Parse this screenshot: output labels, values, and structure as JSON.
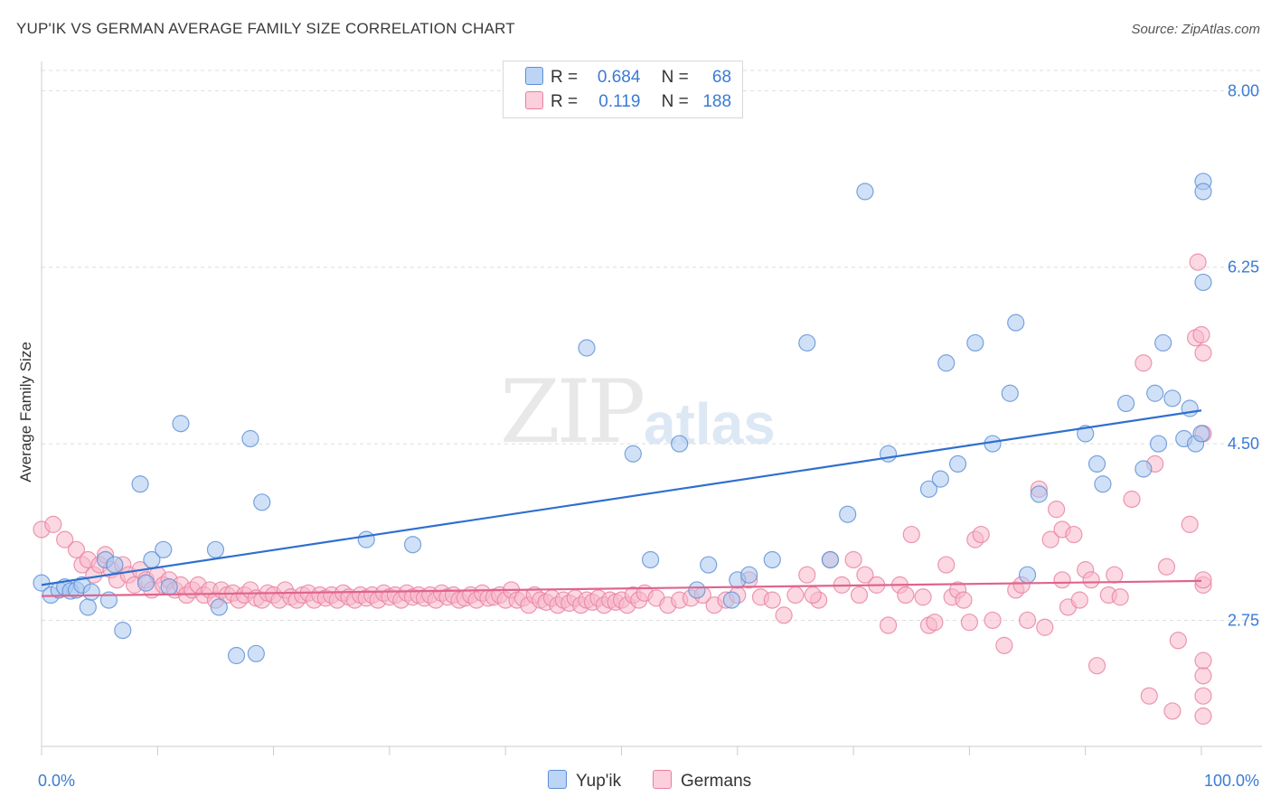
{
  "title": "YUP'IK VS GERMAN AVERAGE FAMILY SIZE CORRELATION CHART",
  "source": "Source: ZipAtlas.com",
  "watermark": {
    "zip": "ZIP",
    "atlas": "atlas"
  },
  "legend": {
    "rows": [
      {
        "r_label": "R =",
        "r_value": "0.684",
        "n_label": "N =",
        "n_value": "68"
      },
      {
        "r_label": "R =",
        "r_value": "0.119",
        "n_label": "N =",
        "n_value": "188"
      }
    ]
  },
  "colors": {
    "yupik_fill": "#a9c8f0",
    "yupik_stroke": "#5b8fd6",
    "yupik_line": "#2f6fcf",
    "german_fill": "#f7b8cb",
    "german_stroke": "#e87fa0",
    "german_line": "#e0648d",
    "axis_text": "#3a7bd5",
    "grid": "#dddddd"
  },
  "chart_data": {
    "type": "scatter",
    "title": "YUP'IK VS GERMAN AVERAGE FAMILY SIZE CORRELATION CHART",
    "xlabel": "",
    "ylabel": "Average Family Size",
    "xlim": [
      0,
      100
    ],
    "ylim": [
      1.5,
      8.2
    ],
    "x_tick_labels": [
      "0.0%",
      "100.0%"
    ],
    "y_ticks": [
      2.75,
      4.5,
      6.25,
      8.0
    ],
    "y_tick_labels": [
      "2.75",
      "4.50",
      "6.25",
      "8.00"
    ],
    "grid": true,
    "legend_position": "bottom",
    "series": [
      {
        "name": "Yup'ik",
        "trend": [
          [
            0,
            3.1
          ],
          [
            100,
            4.83
          ]
        ],
        "points": [
          [
            0,
            3.12
          ],
          [
            0.8,
            3.0
          ],
          [
            1.5,
            3.05
          ],
          [
            2.0,
            3.08
          ],
          [
            2.5,
            3.04
          ],
          [
            3.0,
            3.05
          ],
          [
            3.5,
            3.1
          ],
          [
            4.0,
            2.88
          ],
          [
            4.3,
            3.03
          ],
          [
            5.5,
            3.35
          ],
          [
            5.8,
            2.95
          ],
          [
            6.3,
            3.3
          ],
          [
            7.0,
            2.65
          ],
          [
            8.5,
            4.1
          ],
          [
            9.0,
            3.12
          ],
          [
            9.5,
            3.35
          ],
          [
            10.5,
            3.45
          ],
          [
            11.0,
            3.08
          ],
          [
            12.0,
            4.7
          ],
          [
            15.0,
            3.45
          ],
          [
            15.3,
            2.88
          ],
          [
            16.8,
            2.4
          ],
          [
            18.0,
            4.55
          ],
          [
            18.5,
            2.42
          ],
          [
            19.0,
            3.92
          ],
          [
            28.0,
            3.55
          ],
          [
            32.0,
            3.5
          ],
          [
            47.0,
            5.45
          ],
          [
            51.0,
            4.4
          ],
          [
            52.5,
            3.35
          ],
          [
            55.0,
            4.5
          ],
          [
            56.5,
            3.05
          ],
          [
            57.5,
            3.3
          ],
          [
            59.5,
            2.95
          ],
          [
            60.0,
            3.15
          ],
          [
            61.0,
            3.2
          ],
          [
            63.0,
            3.35
          ],
          [
            66.0,
            5.5
          ],
          [
            68.0,
            3.35
          ],
          [
            69.5,
            3.8
          ],
          [
            71.0,
            7.0
          ],
          [
            73.0,
            4.4
          ],
          [
            76.5,
            4.05
          ],
          [
            77.5,
            4.15
          ],
          [
            78.0,
            5.3
          ],
          [
            79.0,
            4.3
          ],
          [
            80.5,
            5.5
          ],
          [
            82.0,
            4.5
          ],
          [
            83.5,
            5.0
          ],
          [
            84.0,
            5.7
          ],
          [
            85.0,
            3.2
          ],
          [
            86.0,
            4.0
          ],
          [
            90.0,
            4.6
          ],
          [
            91.0,
            4.3
          ],
          [
            91.5,
            4.1
          ],
          [
            93.5,
            4.9
          ],
          [
            95.0,
            4.25
          ],
          [
            96.0,
            5.0
          ],
          [
            96.3,
            4.5
          ],
          [
            97.5,
            4.95
          ],
          [
            98.5,
            4.55
          ],
          [
            99.0,
            4.85
          ],
          [
            99.5,
            4.5
          ],
          [
            100.0,
            4.6
          ],
          [
            96.7,
            5.5
          ],
          [
            101.5,
            7.1
          ],
          [
            101.3,
            7.0
          ],
          [
            102.0,
            6.1
          ]
        ]
      },
      {
        "name": "Germans",
        "trend": [
          [
            0,
            2.99
          ],
          [
            100,
            3.14
          ]
        ],
        "points": [
          [
            0,
            3.65
          ],
          [
            1.0,
            3.7
          ],
          [
            2.0,
            3.55
          ],
          [
            3.0,
            3.45
          ],
          [
            3.5,
            3.3
          ],
          [
            4.0,
            3.35
          ],
          [
            4.5,
            3.2
          ],
          [
            5.0,
            3.3
          ],
          [
            5.5,
            3.4
          ],
          [
            6.0,
            3.25
          ],
          [
            6.5,
            3.15
          ],
          [
            7.0,
            3.3
          ],
          [
            7.5,
            3.2
          ],
          [
            8.0,
            3.1
          ],
          [
            8.5,
            3.25
          ],
          [
            9.0,
            3.15
          ],
          [
            9.5,
            3.05
          ],
          [
            10.0,
            3.2
          ],
          [
            10.5,
            3.1
          ],
          [
            11.0,
            3.15
          ],
          [
            11.5,
            3.05
          ],
          [
            12.0,
            3.1
          ],
          [
            12.5,
            3.0
          ],
          [
            13.0,
            3.05
          ],
          [
            13.5,
            3.1
          ],
          [
            14.0,
            3.0
          ],
          [
            14.5,
            3.05
          ],
          [
            15.0,
            2.95
          ],
          [
            15.5,
            3.05
          ],
          [
            16.0,
            3.0
          ],
          [
            16.5,
            3.02
          ],
          [
            17.0,
            2.95
          ],
          [
            17.5,
            3.0
          ],
          [
            18.0,
            3.05
          ],
          [
            18.5,
            2.97
          ],
          [
            19.0,
            2.95
          ],
          [
            19.5,
            3.02
          ],
          [
            20.0,
            3.0
          ],
          [
            20.5,
            2.95
          ],
          [
            21.0,
            3.05
          ],
          [
            21.5,
            2.98
          ],
          [
            22.0,
            2.95
          ],
          [
            22.5,
            3.0
          ],
          [
            23.0,
            3.02
          ],
          [
            23.5,
            2.95
          ],
          [
            24.0,
            3.0
          ],
          [
            24.5,
            2.97
          ],
          [
            25.0,
            3.0
          ],
          [
            25.5,
            2.95
          ],
          [
            26.0,
            3.02
          ],
          [
            26.5,
            2.98
          ],
          [
            27.0,
            2.95
          ],
          [
            27.5,
            3.0
          ],
          [
            28.0,
            2.97
          ],
          [
            28.5,
            3.0
          ],
          [
            29.0,
            2.95
          ],
          [
            29.5,
            3.02
          ],
          [
            30.0,
            2.98
          ],
          [
            30.5,
            3.0
          ],
          [
            31.0,
            2.95
          ],
          [
            31.5,
            3.02
          ],
          [
            32.0,
            2.98
          ],
          [
            32.5,
            3.0
          ],
          [
            33.0,
            2.97
          ],
          [
            33.5,
            3.0
          ],
          [
            34.0,
            2.95
          ],
          [
            34.5,
            3.02
          ],
          [
            35.0,
            2.98
          ],
          [
            35.5,
            3.0
          ],
          [
            36.0,
            2.95
          ],
          [
            36.5,
            2.97
          ],
          [
            37.0,
            3.0
          ],
          [
            37.5,
            2.95
          ],
          [
            38.0,
            3.02
          ],
          [
            38.5,
            2.97
          ],
          [
            39.0,
            2.98
          ],
          [
            39.5,
            3.0
          ],
          [
            40.0,
            2.95
          ],
          [
            40.5,
            3.05
          ],
          [
            41.0,
            2.95
          ],
          [
            41.5,
            2.97
          ],
          [
            42.0,
            2.9
          ],
          [
            42.5,
            3.0
          ],
          [
            43.0,
            2.95
          ],
          [
            43.5,
            2.93
          ],
          [
            44.0,
            2.97
          ],
          [
            44.5,
            2.9
          ],
          [
            45.0,
            2.95
          ],
          [
            45.5,
            2.92
          ],
          [
            46.0,
            2.97
          ],
          [
            46.5,
            2.9
          ],
          [
            47.0,
            2.95
          ],
          [
            47.5,
            2.93
          ],
          [
            48.0,
            2.97
          ],
          [
            48.5,
            2.9
          ],
          [
            49.0,
            2.95
          ],
          [
            49.5,
            2.93
          ],
          [
            50.0,
            2.95
          ],
          [
            50.5,
            2.9
          ],
          [
            51.0,
            3.0
          ],
          [
            51.5,
            2.95
          ],
          [
            52.0,
            3.02
          ],
          [
            53.0,
            2.97
          ],
          [
            54.0,
            2.9
          ],
          [
            55.0,
            2.95
          ],
          [
            56.0,
            2.97
          ],
          [
            57.0,
            3.0
          ],
          [
            58.0,
            2.9
          ],
          [
            59.0,
            2.95
          ],
          [
            60.0,
            3.0
          ],
          [
            61.0,
            3.15
          ],
          [
            62.0,
            2.98
          ],
          [
            63.0,
            2.95
          ],
          [
            64.0,
            2.8
          ],
          [
            65.0,
            3.0
          ],
          [
            66.0,
            3.2
          ],
          [
            67.0,
            2.95
          ],
          [
            68.0,
            3.35
          ],
          [
            69.0,
            3.1
          ],
          [
            70.0,
            3.35
          ],
          [
            71.0,
            3.2
          ],
          [
            72.0,
            3.1
          ],
          [
            73.0,
            2.7
          ],
          [
            74.0,
            3.1
          ],
          [
            75.0,
            3.6
          ],
          [
            76.0,
            2.98
          ],
          [
            76.5,
            2.7
          ],
          [
            77.0,
            2.73
          ],
          [
            78.0,
            3.3
          ],
          [
            78.5,
            2.98
          ],
          [
            79.0,
            3.05
          ],
          [
            80.0,
            2.73
          ],
          [
            80.5,
            3.55
          ],
          [
            81.0,
            3.6
          ],
          [
            82.0,
            2.75
          ],
          [
            83.0,
            2.5
          ],
          [
            84.0,
            3.05
          ],
          [
            85.0,
            2.75
          ],
          [
            86.0,
            4.05
          ],
          [
            86.5,
            2.68
          ],
          [
            87.0,
            3.55
          ],
          [
            87.5,
            3.85
          ],
          [
            88.0,
            3.65
          ],
          [
            88.5,
            2.88
          ],
          [
            89.0,
            3.6
          ],
          [
            89.5,
            2.95
          ],
          [
            90.0,
            3.25
          ],
          [
            90.5,
            3.15
          ],
          [
            91.0,
            2.3
          ],
          [
            92.0,
            3.0
          ],
          [
            93.0,
            2.98
          ],
          [
            94.0,
            3.95
          ],
          [
            95.0,
            5.3
          ],
          [
            95.5,
            2.0
          ],
          [
            96.0,
            4.3
          ],
          [
            97.0,
            3.28
          ],
          [
            97.5,
            1.85
          ],
          [
            98.0,
            2.55
          ],
          [
            99.0,
            3.7
          ],
          [
            99.5,
            5.55
          ],
          [
            99.7,
            6.3
          ],
          [
            100.0,
            5.58
          ],
          [
            100.5,
            4.6
          ],
          [
            101.0,
            3.1
          ],
          [
            102.0,
            2.2
          ],
          [
            103.0,
            1.8
          ],
          [
            103.5,
            2.0
          ],
          [
            104.0,
            5.4
          ],
          [
            104.5,
            2.35
          ],
          [
            105.0,
            3.15
          ],
          [
            88.0,
            3.15
          ],
          [
            66.5,
            3.0
          ],
          [
            70.5,
            3.0
          ],
          [
            74.5,
            3.0
          ],
          [
            79.5,
            2.95
          ],
          [
            84.5,
            3.1
          ],
          [
            92.5,
            3.2
          ]
        ]
      }
    ]
  },
  "bottom_legend": [
    {
      "label": "Yup'ik"
    },
    {
      "label": "Germans"
    }
  ]
}
